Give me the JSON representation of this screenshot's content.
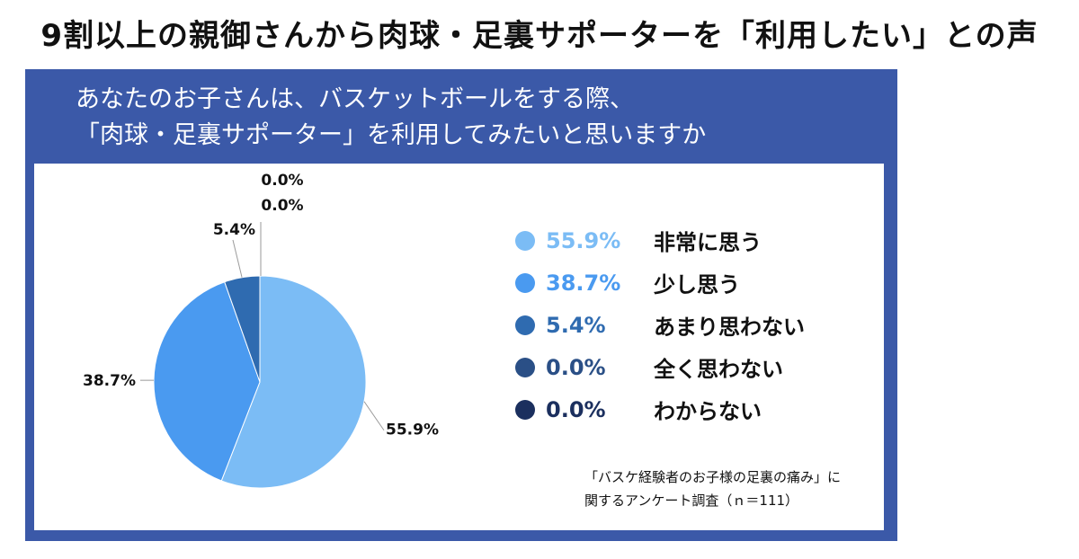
{
  "headline": "9割以上の親御さんから肉球・足裏サポーターを「利用したい」との声",
  "question": {
    "line1": "あなたのお子さんは、バスケットボールをする際、",
    "line2": "「肉球・足裏サポーター」を利用してみたいと思いますか"
  },
  "source": {
    "line1": "「バスケ経験者のお子様の足裏の痛み」に",
    "line2": "関するアンケート調査（ｎ＝111）"
  },
  "colors": {
    "panel": "#3b59a8",
    "slices": [
      "#7bbcf5",
      "#4a9af0",
      "#2f6bb0",
      "#2a4f86",
      "#1b2f5e"
    ]
  },
  "legend": [
    {
      "pct": "55.9%",
      "label": "非常に思う"
    },
    {
      "pct": "38.7%",
      "label": "少し思う"
    },
    {
      "pct": "5.4%",
      "label": "あまり思わない"
    },
    {
      "pct": "0.0%",
      "label": "全く思わない"
    },
    {
      "pct": "0.0%",
      "label": "わからない"
    }
  ],
  "chart_data": {
    "type": "pie",
    "categories": [
      "非常に思う",
      "少し思う",
      "あまり思わない",
      "全く思わない",
      "わからない"
    ],
    "values": [
      55.9,
      38.7,
      5.4,
      0.0,
      0.0
    ],
    "slice_labels": [
      "55.9%",
      "38.7%",
      "5.4%",
      "0.0%",
      "0.0%"
    ],
    "legend_position": "right"
  }
}
